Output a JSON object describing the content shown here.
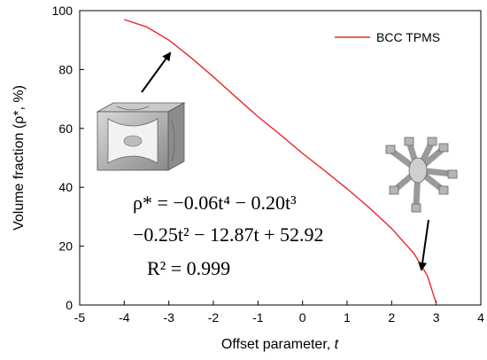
{
  "chart_data": {
    "type": "line",
    "title": "",
    "xlabel": "Offset parameter, ",
    "xlabel_var": "t",
    "ylabel": "Volume fraction (ρ*, %)",
    "xlim": [
      -5,
      4
    ],
    "ylim": [
      0,
      100
    ],
    "x_ticks": [
      "-5",
      "-4",
      "-3",
      "-2",
      "-1",
      "0",
      "1",
      "2",
      "3",
      "4"
    ],
    "y_ticks": [
      "0",
      "20",
      "40",
      "60",
      "80",
      "100"
    ],
    "grid": false,
    "legend_position": "top-right",
    "series": [
      {
        "name": "BCC TPMS",
        "color": "#e8262a",
        "x": [
          -4.0,
          -3.5,
          -3.0,
          -2.5,
          -2.0,
          -1.5,
          -1.0,
          -0.5,
          0.0,
          0.5,
          1.0,
          1.5,
          2.0,
          2.5,
          2.8,
          3.0
        ],
        "y": [
          97.0,
          94.5,
          90.0,
          84.0,
          77.5,
          70.7,
          64.0,
          57.9,
          51.5,
          45.6,
          39.5,
          33.0,
          26.0,
          17.5,
          10.0,
          0.5
        ]
      }
    ],
    "equation": {
      "line1": "ρ* = −0.06t⁴ − 0.20t³",
      "line2": "−0.25t² − 12.87t + 52.92",
      "line3": "R² = 0.999"
    }
  }
}
